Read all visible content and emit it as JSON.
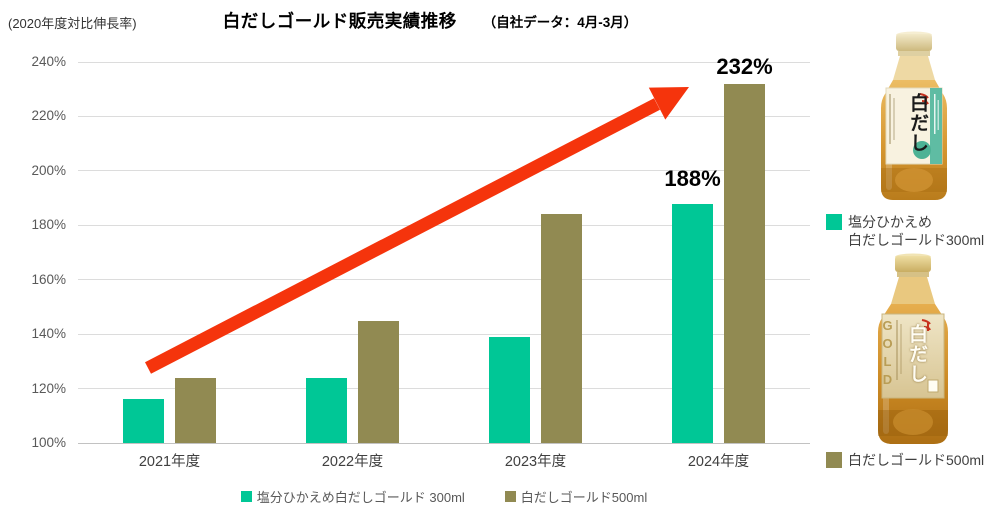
{
  "header": {
    "y_axis_note": "(2020年度対比伸長率)",
    "title": "白だしゴールド販売実績推移",
    "subtitle": "（自社データ：4月-3月）"
  },
  "chart_data": {
    "type": "bar",
    "title": "白だしゴールド販売実績推移（自社データ：4月-3月）",
    "ylabel": "(2020年度対比伸長率)",
    "categories": [
      "2021年度",
      "2022年度",
      "2023年度",
      "2024年度"
    ],
    "series": [
      {
        "name": "塩分ひかえめ白だしゴールド 300ml",
        "color": "#00c796",
        "values": [
          116,
          124,
          139,
          188
        ]
      },
      {
        "name": "白だしゴールド500ml",
        "color": "#918a52",
        "values": [
          124,
          145,
          184,
          232
        ]
      }
    ],
    "ylim": [
      100,
      240
    ],
    "yticks": [
      "100%",
      "120%",
      "140%",
      "160%",
      "180%",
      "200%",
      "220%",
      "240%"
    ],
    "grid": true,
    "legend_position": "bottom",
    "annotations": [
      {
        "series": 0,
        "category": "2024年度",
        "text": "188%"
      },
      {
        "series": 1,
        "category": "2024年度",
        "text": "232%"
      }
    ],
    "trend_arrow": {
      "present": true,
      "color": "#f5340c",
      "direction": "up-right"
    }
  },
  "legend_bottom": {
    "items": [
      {
        "label": "塩分ひかえめ白だしゴールド 300ml",
        "color": "#00c796"
      },
      {
        "label": "白だしゴールド500ml",
        "color": "#918a52"
      }
    ]
  },
  "right_panel": {
    "products": [
      {
        "bottle_text": "白だし",
        "legend_lines": [
          "塩分ひかえめ",
          "白だしゴールド300ml"
        ],
        "color": "#00c796"
      },
      {
        "bottle_text": "白だし",
        "gold_text": "GOLD",
        "legend_lines": [
          "白だしゴールド500ml"
        ],
        "color": "#918a52"
      }
    ]
  }
}
